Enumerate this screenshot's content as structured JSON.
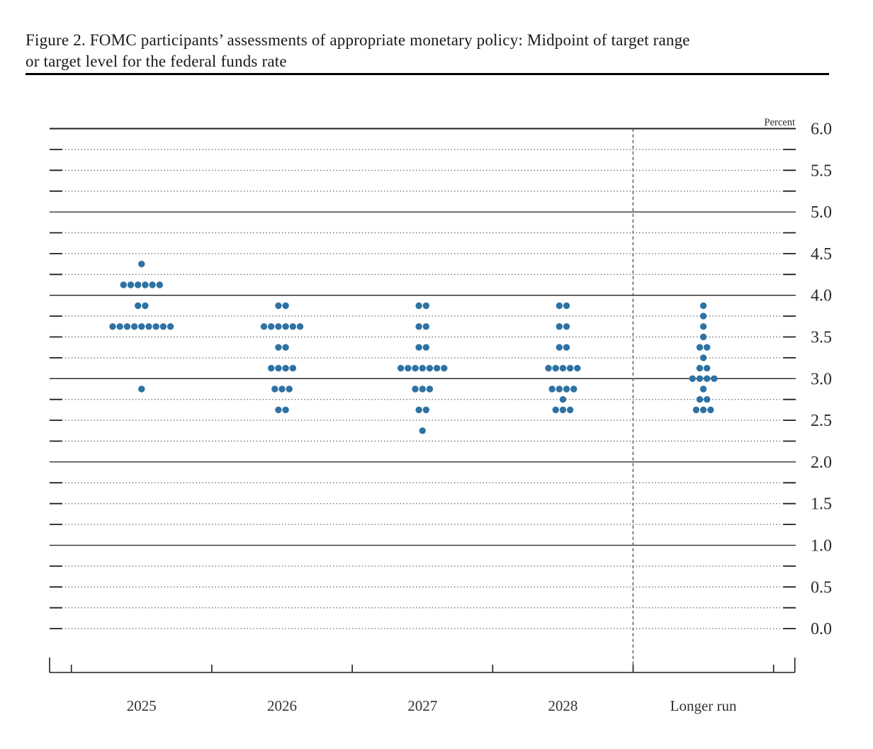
{
  "figure": {
    "title_line1": "Figure 2. FOMC participants’ assessments of appropriate monetary policy: Midpoint of target range",
    "title_line2": "or target level for the federal funds rate"
  },
  "colors": {
    "dot": "#2e72a4",
    "solid_line": "#1f1f1f",
    "dotted_line": "#6b6b6b",
    "dashed_separator": "#555555",
    "axis": "#1f1f1f",
    "tick_label": "#2b2b2b",
    "category_label": "#333333"
  },
  "chart_data": {
    "type": "scatter",
    "subtype": "fomc-dot-plot",
    "unit_label": "Percent",
    "categories": [
      "2025",
      "2026",
      "2027",
      "2028",
      "Longer run"
    ],
    "y_axis": {
      "min": 0.0,
      "max": 6.0,
      "label_step": 0.5,
      "grid_step": 0.25,
      "solid_line_values": [
        6.0,
        5.0,
        4.0,
        3.0,
        2.0,
        1.0
      ],
      "tick_labels": [
        "6.0",
        "5.5",
        "5.0",
        "4.5",
        "4.0",
        "3.5",
        "3.0",
        "2.5",
        "2.0",
        "1.5",
        "1.0",
        "0.5",
        "0.0"
      ],
      "grid": "dotted-quarter-point"
    },
    "legend": "none",
    "series": [
      {
        "category": "2025",
        "dots": [
          {
            "y": 4.375,
            "n": 1
          },
          {
            "y": 4.125,
            "n": 6
          },
          {
            "y": 3.875,
            "n": 2
          },
          {
            "y": 3.625,
            "n": 9
          },
          {
            "y": 2.875,
            "n": 1
          }
        ]
      },
      {
        "category": "2026",
        "dots": [
          {
            "y": 3.875,
            "n": 2
          },
          {
            "y": 3.625,
            "n": 6
          },
          {
            "y": 3.375,
            "n": 2
          },
          {
            "y": 3.125,
            "n": 4
          },
          {
            "y": 2.875,
            "n": 3
          },
          {
            "y": 2.625,
            "n": 2
          }
        ]
      },
      {
        "category": "2027",
        "dots": [
          {
            "y": 3.875,
            "n": 2
          },
          {
            "y": 3.625,
            "n": 2
          },
          {
            "y": 3.375,
            "n": 2
          },
          {
            "y": 3.125,
            "n": 7
          },
          {
            "y": 2.875,
            "n": 3
          },
          {
            "y": 2.625,
            "n": 2
          },
          {
            "y": 2.375,
            "n": 1
          }
        ]
      },
      {
        "category": "2028",
        "dots": [
          {
            "y": 3.875,
            "n": 2
          },
          {
            "y": 3.625,
            "n": 2
          },
          {
            "y": 3.375,
            "n": 2
          },
          {
            "y": 3.125,
            "n": 5
          },
          {
            "y": 2.875,
            "n": 4
          },
          {
            "y": 2.75,
            "n": 1
          },
          {
            "y": 2.625,
            "n": 3
          }
        ]
      },
      {
        "category": "Longer run",
        "dots": [
          {
            "y": 3.875,
            "n": 1
          },
          {
            "y": 3.75,
            "n": 1
          },
          {
            "y": 3.625,
            "n": 1
          },
          {
            "y": 3.5,
            "n": 1
          },
          {
            "y": 3.375,
            "n": 2
          },
          {
            "y": 3.25,
            "n": 1
          },
          {
            "y": 3.125,
            "n": 2
          },
          {
            "y": 3.0,
            "n": 4
          },
          {
            "y": 2.875,
            "n": 1
          },
          {
            "y": 2.75,
            "n": 2
          },
          {
            "y": 2.625,
            "n": 3
          }
        ]
      }
    ]
  }
}
